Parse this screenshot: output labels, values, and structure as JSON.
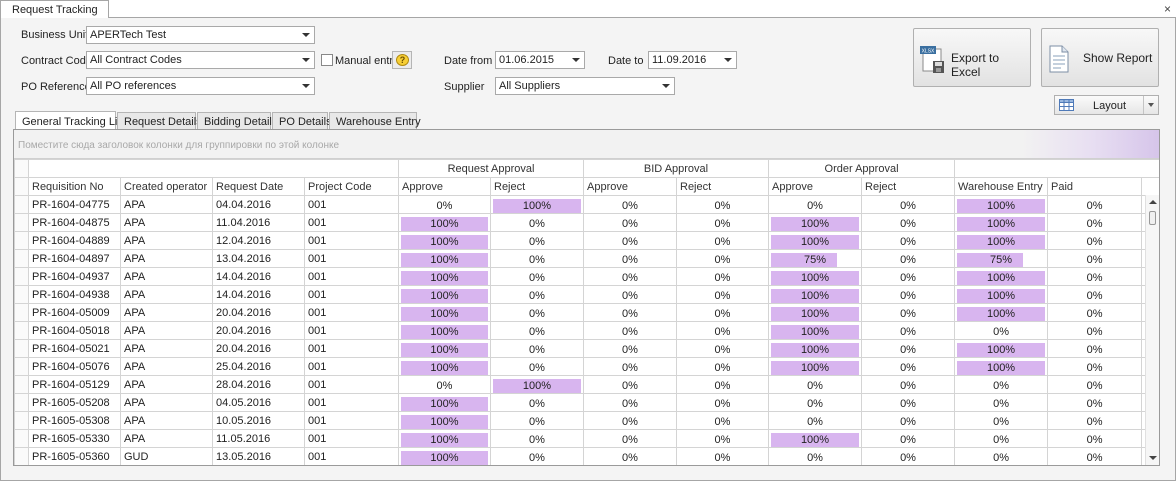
{
  "window": {
    "tab": "Request Tracking",
    "close": "×"
  },
  "filters": {
    "business_unit": {
      "label": "Business Unit",
      "value": "APERTech Test"
    },
    "contract_code": {
      "label": "Contract Code",
      "value": "All Contract Codes"
    },
    "manual_entry": {
      "label": "Manual entry",
      "help": "?"
    },
    "po_reference": {
      "label": "PO Reference",
      "value": "All PO references"
    },
    "date_from": {
      "label": "Date from",
      "value": "01.06.2015"
    },
    "date_to": {
      "label": "Date to",
      "value": "11.09.2016"
    },
    "supplier": {
      "label": "Supplier",
      "value": "All Suppliers"
    }
  },
  "buttons": {
    "export": "Export to Excel",
    "export_icon": "XLSX",
    "report": "Show Report",
    "layout": "Layout"
  },
  "tabs": [
    "General Tracking List",
    "Request Details",
    "Bidding Details",
    "PO Details",
    "Warehouse Entry"
  ],
  "grid": {
    "group_hint": "Поместите сюда заголовок колонки для группировки по этой колонке",
    "bands": [
      "Request Approval",
      "BID Approval",
      "Order Approval"
    ],
    "columns": [
      "Requisition No",
      "Created operator",
      "Request Date",
      "Project Code",
      "Approve",
      "Reject",
      "Approve",
      "Reject",
      "Approve",
      "Reject",
      "Warehouse Entry",
      "Paid"
    ],
    "rows": [
      [
        "PR-1604-04775",
        "APA",
        "04.04.2016",
        "001",
        0,
        100,
        0,
        0,
        0,
        0,
        100,
        0
      ],
      [
        "PR-1604-04875",
        "APA",
        "11.04.2016",
        "001",
        100,
        0,
        0,
        0,
        100,
        0,
        100,
        0
      ],
      [
        "PR-1604-04889",
        "APA",
        "12.04.2016",
        "001",
        100,
        0,
        0,
        0,
        100,
        0,
        100,
        0
      ],
      [
        "PR-1604-04897",
        "APA",
        "13.04.2016",
        "001",
        100,
        0,
        0,
        0,
        75,
        0,
        75,
        0
      ],
      [
        "PR-1604-04937",
        "APA",
        "14.04.2016",
        "001",
        100,
        0,
        0,
        0,
        100,
        0,
        100,
        0
      ],
      [
        "PR-1604-04938",
        "APA",
        "14.04.2016",
        "001",
        100,
        0,
        0,
        0,
        100,
        0,
        100,
        0
      ],
      [
        "PR-1604-05009",
        "APA",
        "20.04.2016",
        "001",
        100,
        0,
        0,
        0,
        100,
        0,
        100,
        0
      ],
      [
        "PR-1604-05018",
        "APA",
        "20.04.2016",
        "001",
        100,
        0,
        0,
        0,
        100,
        0,
        0,
        0
      ],
      [
        "PR-1604-05021",
        "APA",
        "20.04.2016",
        "001",
        100,
        0,
        0,
        0,
        100,
        0,
        100,
        0
      ],
      [
        "PR-1604-05076",
        "APA",
        "25.04.2016",
        "001",
        100,
        0,
        0,
        0,
        100,
        0,
        100,
        0
      ],
      [
        "PR-1604-05129",
        "APA",
        "28.04.2016",
        "001",
        0,
        100,
        0,
        0,
        0,
        0,
        0,
        0
      ],
      [
        "PR-1605-05208",
        "APA",
        "04.05.2016",
        "001",
        100,
        0,
        0,
        0,
        0,
        0,
        0,
        0
      ],
      [
        "PR-1605-05308",
        "APA",
        "10.05.2016",
        "001",
        100,
        0,
        0,
        0,
        0,
        0,
        0,
        0
      ],
      [
        "PR-1605-05330",
        "APA",
        "11.05.2016",
        "001",
        100,
        0,
        0,
        0,
        100,
        0,
        0,
        0
      ],
      [
        "PR-1605-05360",
        "GUD",
        "13.05.2016",
        "001",
        100,
        0,
        0,
        0,
        0,
        0,
        0,
        0
      ]
    ],
    "percent_suffix": "%",
    "bar_color": "#d8b5ef"
  }
}
